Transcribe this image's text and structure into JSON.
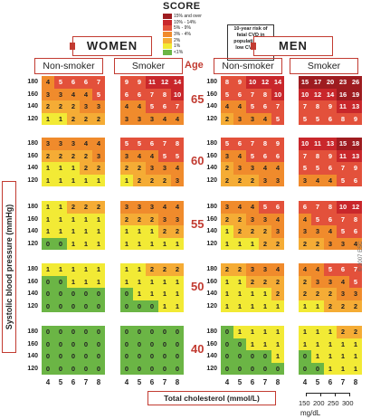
{
  "logo": "SCORE",
  "legend": [
    {
      "label": "15% and over",
      "color": "#9e1c20"
    },
    {
      "label": "10% - 14%",
      "color": "#c9272b"
    },
    {
      "label": "5% - 9%",
      "color": "#e3513b"
    },
    {
      "label": "3% - 4%",
      "color": "#f08b2c"
    },
    {
      "label": "2%",
      "color": "#f5ac35"
    },
    {
      "label": "1%",
      "color": "#f2ea35"
    },
    {
      "label": "<1%",
      "color": "#6bb545"
    }
  ],
  "risk_note": "10-year risk of fatal CVD in populations at low CVD risk",
  "women_label": "WOMEN",
  "men_label": "MEN",
  "nonsmoker_label": "Non-smoker",
  "smoker_label": "Smoker",
  "age_label": "Age",
  "sbp_values": [
    "180",
    "160",
    "140",
    "120"
  ],
  "x_ticks": [
    "4",
    "5",
    "6",
    "7",
    "8"
  ],
  "x_title": "Total cholesterol (mmol/L)",
  "y_title": "Systolic blood pressure (mmHg)",
  "mgdl_ticks": [
    "150",
    "200",
    "250",
    "300"
  ],
  "mgdl_label": "mg/dL",
  "copyright": "© 2007 ESC",
  "ages": [
    {
      "age": "65",
      "women_non": [
        [
          "4",
          "5",
          "6",
          "6",
          "7"
        ],
        [
          "3",
          "3",
          "4",
          "4",
          "5"
        ],
        [
          "2",
          "2",
          "2",
          "3",
          "3"
        ],
        [
          "1",
          "1",
          "2",
          "2",
          "2"
        ]
      ],
      "women_smk": [
        [
          "9",
          "9",
          "11",
          "12",
          "14"
        ],
        [
          "6",
          "6",
          "7",
          "8",
          "10"
        ],
        [
          "4",
          "4",
          "5",
          "6",
          "7"
        ],
        [
          "3",
          "3",
          "3",
          "4",
          "4"
        ]
      ],
      "men_non": [
        [
          "8",
          "9",
          "10",
          "12",
          "14"
        ],
        [
          "5",
          "6",
          "7",
          "8",
          "10"
        ],
        [
          "4",
          "4",
          "5",
          "6",
          "7"
        ],
        [
          "2",
          "3",
          "3",
          "4",
          "5"
        ]
      ],
      "men_smk": [
        [
          "15",
          "17",
          "20",
          "23",
          "26"
        ],
        [
          "10",
          "12",
          "14",
          "16",
          "19"
        ],
        [
          "7",
          "8",
          "9",
          "11",
          "13"
        ],
        [
          "5",
          "5",
          "6",
          "8",
          "9"
        ]
      ]
    },
    {
      "age": "60",
      "women_non": [
        [
          "3",
          "3",
          "3",
          "4",
          "4"
        ],
        [
          "2",
          "2",
          "2",
          "2",
          "3"
        ],
        [
          "1",
          "1",
          "1",
          "2",
          "2"
        ],
        [
          "1",
          "1",
          "1",
          "1",
          "1"
        ]
      ],
      "women_smk": [
        [
          "5",
          "5",
          "6",
          "7",
          "8"
        ],
        [
          "3",
          "4",
          "4",
          "5",
          "5"
        ],
        [
          "2",
          "2",
          "3",
          "3",
          "4"
        ],
        [
          "1",
          "2",
          "2",
          "2",
          "3"
        ]
      ],
      "men_non": [
        [
          "5",
          "6",
          "7",
          "8",
          "9"
        ],
        [
          "3",
          "4",
          "5",
          "6",
          "6"
        ],
        [
          "2",
          "3",
          "3",
          "4",
          "4"
        ],
        [
          "2",
          "2",
          "2",
          "3",
          "3"
        ]
      ],
      "men_smk": [
        [
          "10",
          "11",
          "13",
          "15",
          "18"
        ],
        [
          "7",
          "8",
          "9",
          "11",
          "13"
        ],
        [
          "5",
          "5",
          "6",
          "7",
          "9"
        ],
        [
          "3",
          "4",
          "4",
          "5",
          "6"
        ]
      ]
    },
    {
      "age": "55",
      "women_non": [
        [
          "1",
          "1",
          "2",
          "2",
          "2"
        ],
        [
          "1",
          "1",
          "1",
          "1",
          "1"
        ],
        [
          "1",
          "1",
          "1",
          "1",
          "1"
        ],
        [
          "0",
          "0",
          "1",
          "1",
          "1"
        ]
      ],
      "women_smk": [
        [
          "3",
          "3",
          "3",
          "4",
          "4"
        ],
        [
          "2",
          "2",
          "2",
          "3",
          "3"
        ],
        [
          "1",
          "1",
          "1",
          "2",
          "2"
        ],
        [
          "1",
          "1",
          "1",
          "1",
          "1"
        ]
      ],
      "men_non": [
        [
          "3",
          "4",
          "4",
          "5",
          "6"
        ],
        [
          "2",
          "2",
          "3",
          "3",
          "4"
        ],
        [
          "1",
          "2",
          "2",
          "2",
          "3"
        ],
        [
          "1",
          "1",
          "1",
          "2",
          "2"
        ]
      ],
      "men_smk": [
        [
          "6",
          "7",
          "8",
          "10",
          "12"
        ],
        [
          "4",
          "5",
          "6",
          "7",
          "8"
        ],
        [
          "3",
          "3",
          "4",
          "5",
          "6"
        ],
        [
          "2",
          "2",
          "3",
          "3",
          "4"
        ]
      ]
    },
    {
      "age": "50",
      "women_non": [
        [
          "1",
          "1",
          "1",
          "1",
          "1"
        ],
        [
          "0",
          "0",
          "1",
          "1",
          "1"
        ],
        [
          "0",
          "0",
          "0",
          "0",
          "0"
        ],
        [
          "0",
          "0",
          "0",
          "0",
          "0"
        ]
      ],
      "women_smk": [
        [
          "1",
          "1",
          "2",
          "2",
          "2"
        ],
        [
          "1",
          "1",
          "1",
          "1",
          "1"
        ],
        [
          "0",
          "1",
          "1",
          "1",
          "1"
        ],
        [
          "0",
          "0",
          "0",
          "1",
          "1"
        ]
      ],
      "men_non": [
        [
          "2",
          "2",
          "3",
          "3",
          "4"
        ],
        [
          "1",
          "1",
          "2",
          "2",
          "2"
        ],
        [
          "1",
          "1",
          "1",
          "1",
          "2"
        ],
        [
          "1",
          "1",
          "1",
          "1",
          "1"
        ]
      ],
      "men_smk": [
        [
          "4",
          "4",
          "5",
          "6",
          "7"
        ],
        [
          "2",
          "3",
          "3",
          "4",
          "5"
        ],
        [
          "2",
          "2",
          "2",
          "3",
          "3"
        ],
        [
          "1",
          "1",
          "2",
          "2",
          "2"
        ]
      ]
    },
    {
      "age": "40",
      "women_non": [
        [
          "0",
          "0",
          "0",
          "0",
          "0"
        ],
        [
          "0",
          "0",
          "0",
          "0",
          "0"
        ],
        [
          "0",
          "0",
          "0",
          "0",
          "0"
        ],
        [
          "0",
          "0",
          "0",
          "0",
          "0"
        ]
      ],
      "women_smk": [
        [
          "0",
          "0",
          "0",
          "0",
          "0"
        ],
        [
          "0",
          "0",
          "0",
          "0",
          "0"
        ],
        [
          "0",
          "0",
          "0",
          "0",
          "0"
        ],
        [
          "0",
          "0",
          "0",
          "0",
          "0"
        ]
      ],
      "men_non": [
        [
          "0",
          "1",
          "1",
          "1",
          "1"
        ],
        [
          "0",
          "0",
          "1",
          "1",
          "1"
        ],
        [
          "0",
          "0",
          "0",
          "0",
          "1"
        ],
        [
          "0",
          "0",
          "0",
          "0",
          "0"
        ]
      ],
      "men_smk": [
        [
          "1",
          "1",
          "1",
          "2",
          "2"
        ],
        [
          "1",
          "1",
          "1",
          "1",
          "1"
        ],
        [
          "0",
          "1",
          "1",
          "1",
          "1"
        ],
        [
          "0",
          "0",
          "1",
          "1",
          "1"
        ]
      ]
    }
  ]
}
